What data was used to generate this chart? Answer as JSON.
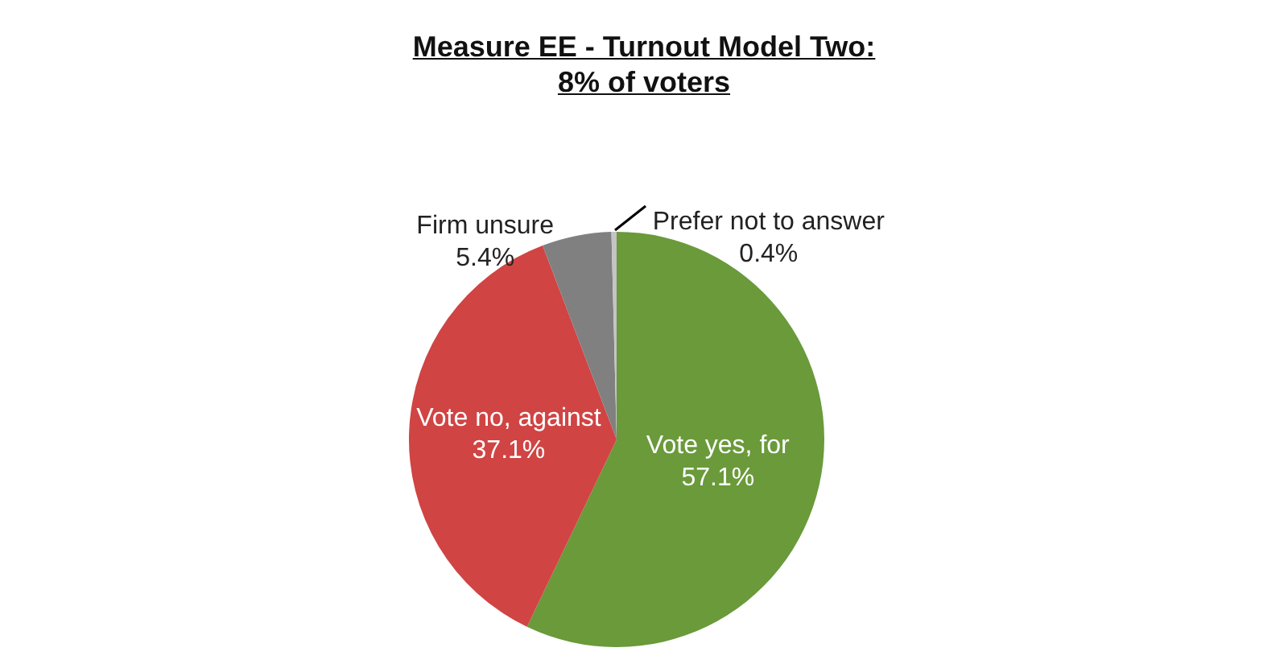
{
  "chart_data": {
    "type": "pie",
    "title": "Measure EE - Turnout Model Two:\n8% of voters",
    "categories": [
      "Vote yes, for",
      "Vote no, against",
      "Firm unsure",
      "Prefer not to answer"
    ],
    "values": [
      57.1,
      37.1,
      5.4,
      0.4
    ],
    "colors": [
      "#6a9a3a",
      "#d04444",
      "#808080",
      "#c4c4c4"
    ],
    "value_labels": [
      "57.1%",
      "37.1%",
      "5.4%",
      "0.4%"
    ],
    "legend": false
  }
}
